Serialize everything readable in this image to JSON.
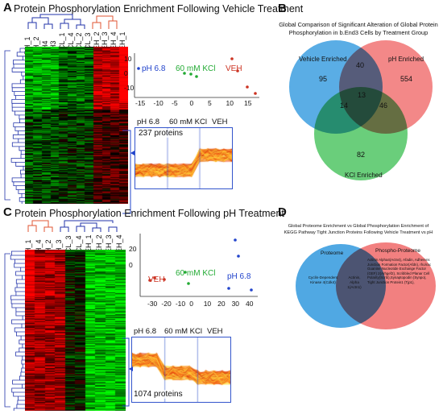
{
  "panel_a": {
    "letter": "A",
    "title": "Protein Phosphorylation Enrichment Following Vehicle Treatment",
    "columns": [
      "PH_1",
      "PH_2",
      "PH4",
      "PH3",
      "KCL_1",
      "KCL_4",
      "KCL_2",
      "KCL_3",
      "VEH_2",
      "VEH_3",
      "VEH_4",
      "VEH_1"
    ],
    "pca": {
      "ticks_x": [
        "-15",
        "-10",
        "-5",
        "0",
        "5",
        "10",
        "15"
      ],
      "ticks_y": [
        "10",
        "0",
        "-10"
      ],
      "labels": [
        "pH 6.8",
        "60 mM KCl",
        "VEH"
      ]
    },
    "profile": {
      "groups": [
        "pH 6.8",
        "60 mM KCl",
        "VEH"
      ],
      "count_label": "237 proteins"
    }
  },
  "panel_b": {
    "letter": "B",
    "title_line1": "Global Comparison of Significant Alteration of Global Protein",
    "title_line2": "Phosphorylation in b.End3 Cells by Treatment Group",
    "sets": [
      "Vehicle Enriched",
      "pH Enriched",
      "KCl Enriched"
    ],
    "counts": {
      "v_only": "95",
      "ph_only": "554",
      "k_only": "82",
      "v_ph": "40",
      "v_k": "14",
      "ph_k": "46",
      "all": "13"
    },
    "colors": {
      "vehicle": "#3d9fe0",
      "ph": "#f06a6a",
      "kcl": "#45c25a"
    }
  },
  "panel_c": {
    "letter": "C",
    "title": "Protein Phosphorylation Enrichment Following pH Treatment",
    "columns": [
      "PH_1",
      "PH_4",
      "PH_2",
      "PH_3",
      "KCL_3",
      "KCL_4",
      "VEH_1",
      "VEH_2",
      "VEH_3",
      "VEH_4"
    ],
    "pca": {
      "ticks_x": [
        "-30",
        "-20",
        "-10",
        "0",
        "10",
        "20",
        "30",
        "40"
      ],
      "ticks_y": [
        "20",
        "0"
      ],
      "labels": [
        "VEH",
        "60 mM KCl",
        "pH 6.8"
      ]
    },
    "profile": {
      "groups": [
        "pH 6.8",
        "60 mM KCl",
        "VEH"
      ],
      "count_label": "1074 proteins"
    }
  },
  "panel_d": {
    "letter": "D",
    "title_line1": "Global Proteome Enrichment vs Global Phosphorylation Enrichment of",
    "title_line2": "KEGG Pathway Tight Junction Proteins Following Vehicle Treatment vs pH",
    "sets": [
      "Proteome",
      "Phospho-Proteome"
    ],
    "left_only": "Cyclin-Dependent Kinase 4(Cdk4)",
    "overlap": "Actinin, Alpha 1(Actn1)",
    "right_only": "Actinin Alpha4(Actn4), Afadin, Adherens Junction Formation Factor(Afdn), rho/rac Guanine Nucleotide Exchange Factor (GEF) 2(Arhgef2), Scribbled Planar Cell Polarity(Scrib),Synaptopodin (Synpo), Tight Junction Protein1 (Tjp1),"
  }
}
